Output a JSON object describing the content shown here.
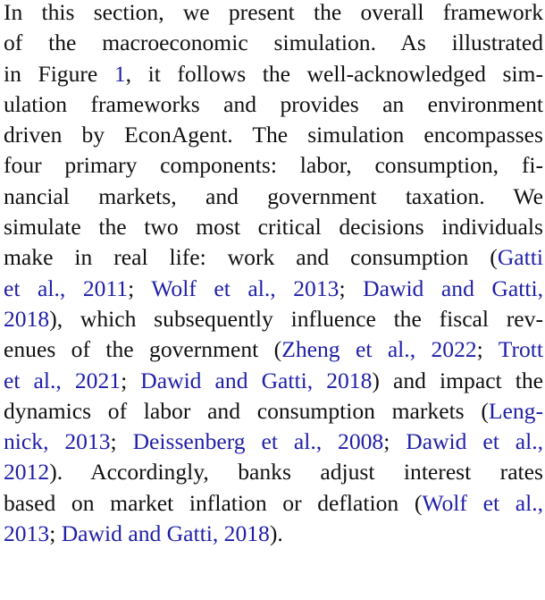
{
  "paragraph": {
    "lines": [
      {
        "segments": [
          {
            "t": "In this section, we present the overall framework",
            "c": false
          }
        ]
      },
      {
        "segments": [
          {
            "t": "of the macroeconomic simulation.  As illustrated",
            "c": false
          }
        ]
      },
      {
        "segments": [
          {
            "t": "in Figure ",
            "c": false
          },
          {
            "t": "1",
            "c": true
          },
          {
            "t": ", it follows the well-acknowledged sim-",
            "c": false
          }
        ]
      },
      {
        "segments": [
          {
            "t": "ulation frameworks and provides an environment",
            "c": false
          }
        ]
      },
      {
        "segments": [
          {
            "t": "driven by EconAgent. The simulation encompasses",
            "c": false
          }
        ]
      },
      {
        "segments": [
          {
            "t": "four primary components: labor, consumption, fi-",
            "c": false
          }
        ]
      },
      {
        "segments": [
          {
            "t": "nancial markets, and government taxation.  We",
            "c": false
          }
        ]
      },
      {
        "segments": [
          {
            "t": "simulate the two most critical decisions individuals",
            "c": false
          }
        ]
      },
      {
        "segments": [
          {
            "t": "make in real life: work and consumption (",
            "c": false
          },
          {
            "t": "Gatti",
            "c": true
          }
        ]
      },
      {
        "segments": [
          {
            "t": "et al., 2011",
            "c": true
          },
          {
            "t": "; ",
            "c": false
          },
          {
            "t": "Wolf et al., 2013",
            "c": true
          },
          {
            "t": "; ",
            "c": false
          },
          {
            "t": "Dawid and Gatti,",
            "c": true
          }
        ]
      },
      {
        "segments": [
          {
            "t": "2018",
            "c": true
          },
          {
            "t": "), which subsequently influence the fiscal rev-",
            "c": false
          }
        ]
      },
      {
        "segments": [
          {
            "t": "enues of the government (",
            "c": false
          },
          {
            "t": "Zheng et al., 2022",
            "c": true
          },
          {
            "t": "; ",
            "c": false
          },
          {
            "t": "Trott",
            "c": true
          }
        ]
      },
      {
        "segments": [
          {
            "t": "et al., 2021",
            "c": true
          },
          {
            "t": "; ",
            "c": false
          },
          {
            "t": "Dawid and Gatti, 2018",
            "c": true
          },
          {
            "t": ") and impact the",
            "c": false
          }
        ]
      },
      {
        "segments": [
          {
            "t": "dynamics of labor and consumption markets (",
            "c": false
          },
          {
            "t": "Leng-",
            "c": true
          }
        ]
      },
      {
        "segments": [
          {
            "t": "nick, 2013",
            "c": true
          },
          {
            "t": "; ",
            "c": false
          },
          {
            "t": "Deissenberg et al., 2008",
            "c": true
          },
          {
            "t": "; ",
            "c": false
          },
          {
            "t": "Dawid et al.,",
            "c": true
          }
        ]
      },
      {
        "segments": [
          {
            "t": "2012",
            "c": true
          },
          {
            "t": ").  Accordingly, banks adjust interest rates",
            "c": false
          }
        ]
      },
      {
        "segments": [
          {
            "t": "based on market inflation or deflation (",
            "c": false
          },
          {
            "t": "Wolf et al.,",
            "c": true
          }
        ]
      },
      {
        "segments": [
          {
            "t": "2013",
            "c": true
          },
          {
            "t": "; ",
            "c": false
          },
          {
            "t": "Dawid and Gatti, 2018",
            "c": true
          },
          {
            "t": ").",
            "c": false
          }
        ]
      }
    ]
  },
  "colors": {
    "text": "#111111",
    "citation": "#1f1fa8"
  }
}
